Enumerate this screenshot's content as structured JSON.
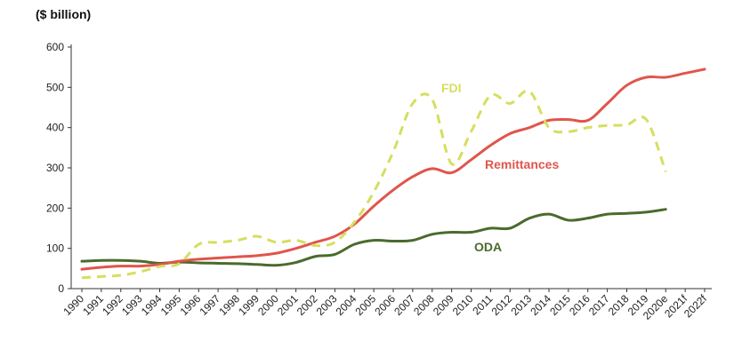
{
  "chart_data": {
    "type": "line",
    "ylabel": "($ billion)",
    "ylim": [
      0,
      600
    ],
    "yticks": [
      0,
      100,
      200,
      300,
      400,
      500,
      600
    ],
    "categories": [
      "1990",
      "1991",
      "1992",
      "1993",
      "1994",
      "1995",
      "1996",
      "1997",
      "1998",
      "1999",
      "2000",
      "2001",
      "2002",
      "2003",
      "2004",
      "2005",
      "2006",
      "2007",
      "2008",
      "2009",
      "2010",
      "2011",
      "2012",
      "2013",
      "2014",
      "2015",
      "2016",
      "2017",
      "2018",
      "2019",
      "2020e",
      "2021f",
      "2022f"
    ],
    "series": [
      {
        "name": "FDI",
        "color": "#d6de5f",
        "style": "dashed",
        "values": [
          27,
          30,
          33,
          42,
          55,
          62,
          110,
          115,
          120,
          130,
          115,
          120,
          107,
          115,
          165,
          240,
          340,
          460,
          470,
          310,
          390,
          480,
          460,
          490,
          400,
          390,
          400,
          405,
          407,
          420,
          290,
          null,
          null
        ]
      },
      {
        "name": "Remittances",
        "color": "#e0554b",
        "style": "solid",
        "values": [
          48,
          53,
          56,
          56,
          60,
          68,
          73,
          76,
          79,
          82,
          88,
          100,
          115,
          130,
          160,
          205,
          245,
          278,
          298,
          288,
          320,
          356,
          385,
          400,
          418,
          420,
          418,
          460,
          505,
          525,
          525,
          535,
          545
        ]
      },
      {
        "name": "ODA",
        "color": "#4a6b2c",
        "style": "solid",
        "values": [
          68,
          70,
          70,
          68,
          63,
          66,
          64,
          63,
          62,
          60,
          58,
          65,
          80,
          85,
          110,
          120,
          118,
          120,
          135,
          140,
          140,
          150,
          150,
          175,
          185,
          170,
          175,
          185,
          187,
          190,
          197,
          null,
          null
        ]
      }
    ]
  }
}
